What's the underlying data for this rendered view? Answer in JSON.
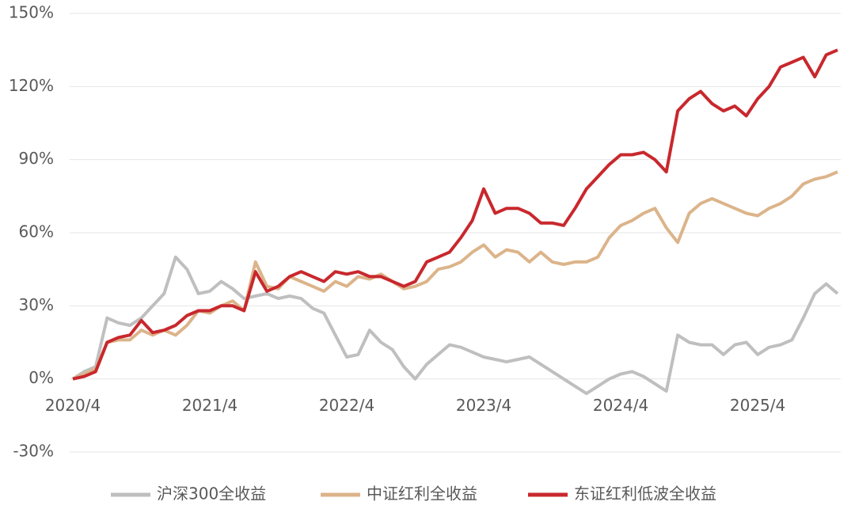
{
  "chart_data": {
    "type": "line",
    "categories": [
      "2020/4",
      null,
      null,
      null,
      null,
      null,
      null,
      null,
      null,
      null,
      null,
      null,
      "2021/4",
      null,
      null,
      null,
      null,
      null,
      null,
      null,
      null,
      null,
      null,
      null,
      "2022/4",
      null,
      null,
      null,
      null,
      null,
      null,
      null,
      null,
      null,
      null,
      null,
      "2023/4",
      null,
      null,
      null,
      null,
      null,
      null,
      null,
      null,
      null,
      null,
      null,
      "2024/4",
      null,
      null,
      null,
      null,
      null,
      null,
      null,
      null,
      null,
      null,
      null,
      "2025/4",
      null,
      null,
      null,
      null,
      null,
      null,
      null
    ],
    "series": [
      {
        "name": "沪深300全收益",
        "color": "#bfbfbf",
        "values": [
          0,
          3,
          5,
          25,
          23,
          22,
          25,
          30,
          35,
          50,
          45,
          35,
          36,
          40,
          37,
          33,
          34,
          35,
          33,
          34,
          33,
          29,
          27,
          18,
          9,
          10,
          20,
          15,
          12,
          5,
          0,
          6,
          10,
          14,
          13,
          11,
          9,
          8,
          7,
          8,
          9,
          6,
          3,
          0,
          -3,
          -6,
          -3,
          0,
          2,
          3,
          1,
          -2,
          -5,
          18,
          15,
          14,
          14,
          10,
          14,
          15,
          10,
          13,
          14,
          16,
          25,
          35,
          39,
          35
        ]
      },
      {
        "name": "中证红利全收益",
        "color": "#dcb48a",
        "values": [
          0,
          2,
          4,
          15,
          16,
          16,
          20,
          18,
          20,
          18,
          22,
          28,
          27,
          30,
          32,
          28,
          48,
          38,
          37,
          42,
          40,
          38,
          36,
          40,
          38,
          42,
          41,
          43,
          40,
          37,
          38,
          40,
          45,
          46,
          48,
          52,
          55,
          50,
          53,
          52,
          48,
          52,
          48,
          47,
          48,
          48,
          50,
          58,
          63,
          65,
          68,
          70,
          62,
          56,
          68,
          72,
          74,
          72,
          70,
          68,
          67,
          70,
          72,
          75,
          80,
          82,
          83,
          85
        ]
      },
      {
        "name": "东证红利低波全收益",
        "color": "#c8282d",
        "values": [
          0,
          1,
          3,
          15,
          17,
          18,
          24,
          19,
          20,
          22,
          26,
          28,
          28,
          30,
          30,
          28,
          44,
          36,
          38,
          42,
          44,
          42,
          40,
          44,
          43,
          44,
          42,
          42,
          40,
          38,
          40,
          48,
          50,
          52,
          58,
          65,
          78,
          68,
          70,
          70,
          68,
          64,
          64,
          63,
          70,
          78,
          83,
          88,
          92,
          92,
          93,
          90,
          85,
          110,
          115,
          118,
          113,
          110,
          112,
          108,
          115,
          120,
          128,
          130,
          132,
          124,
          133,
          135
        ]
      }
    ],
    "ylim": [
      -30,
      150
    ],
    "yticks": [
      {
        "value": -30,
        "label": "-30%"
      },
      {
        "value": 0,
        "label": "0%"
      },
      {
        "value": 30,
        "label": "30%"
      },
      {
        "value": 60,
        "label": "60%"
      },
      {
        "value": 90,
        "label": "90%"
      },
      {
        "value": 120,
        "label": "120%"
      },
      {
        "value": 150,
        "label": "150%"
      }
    ],
    "grid": true
  }
}
